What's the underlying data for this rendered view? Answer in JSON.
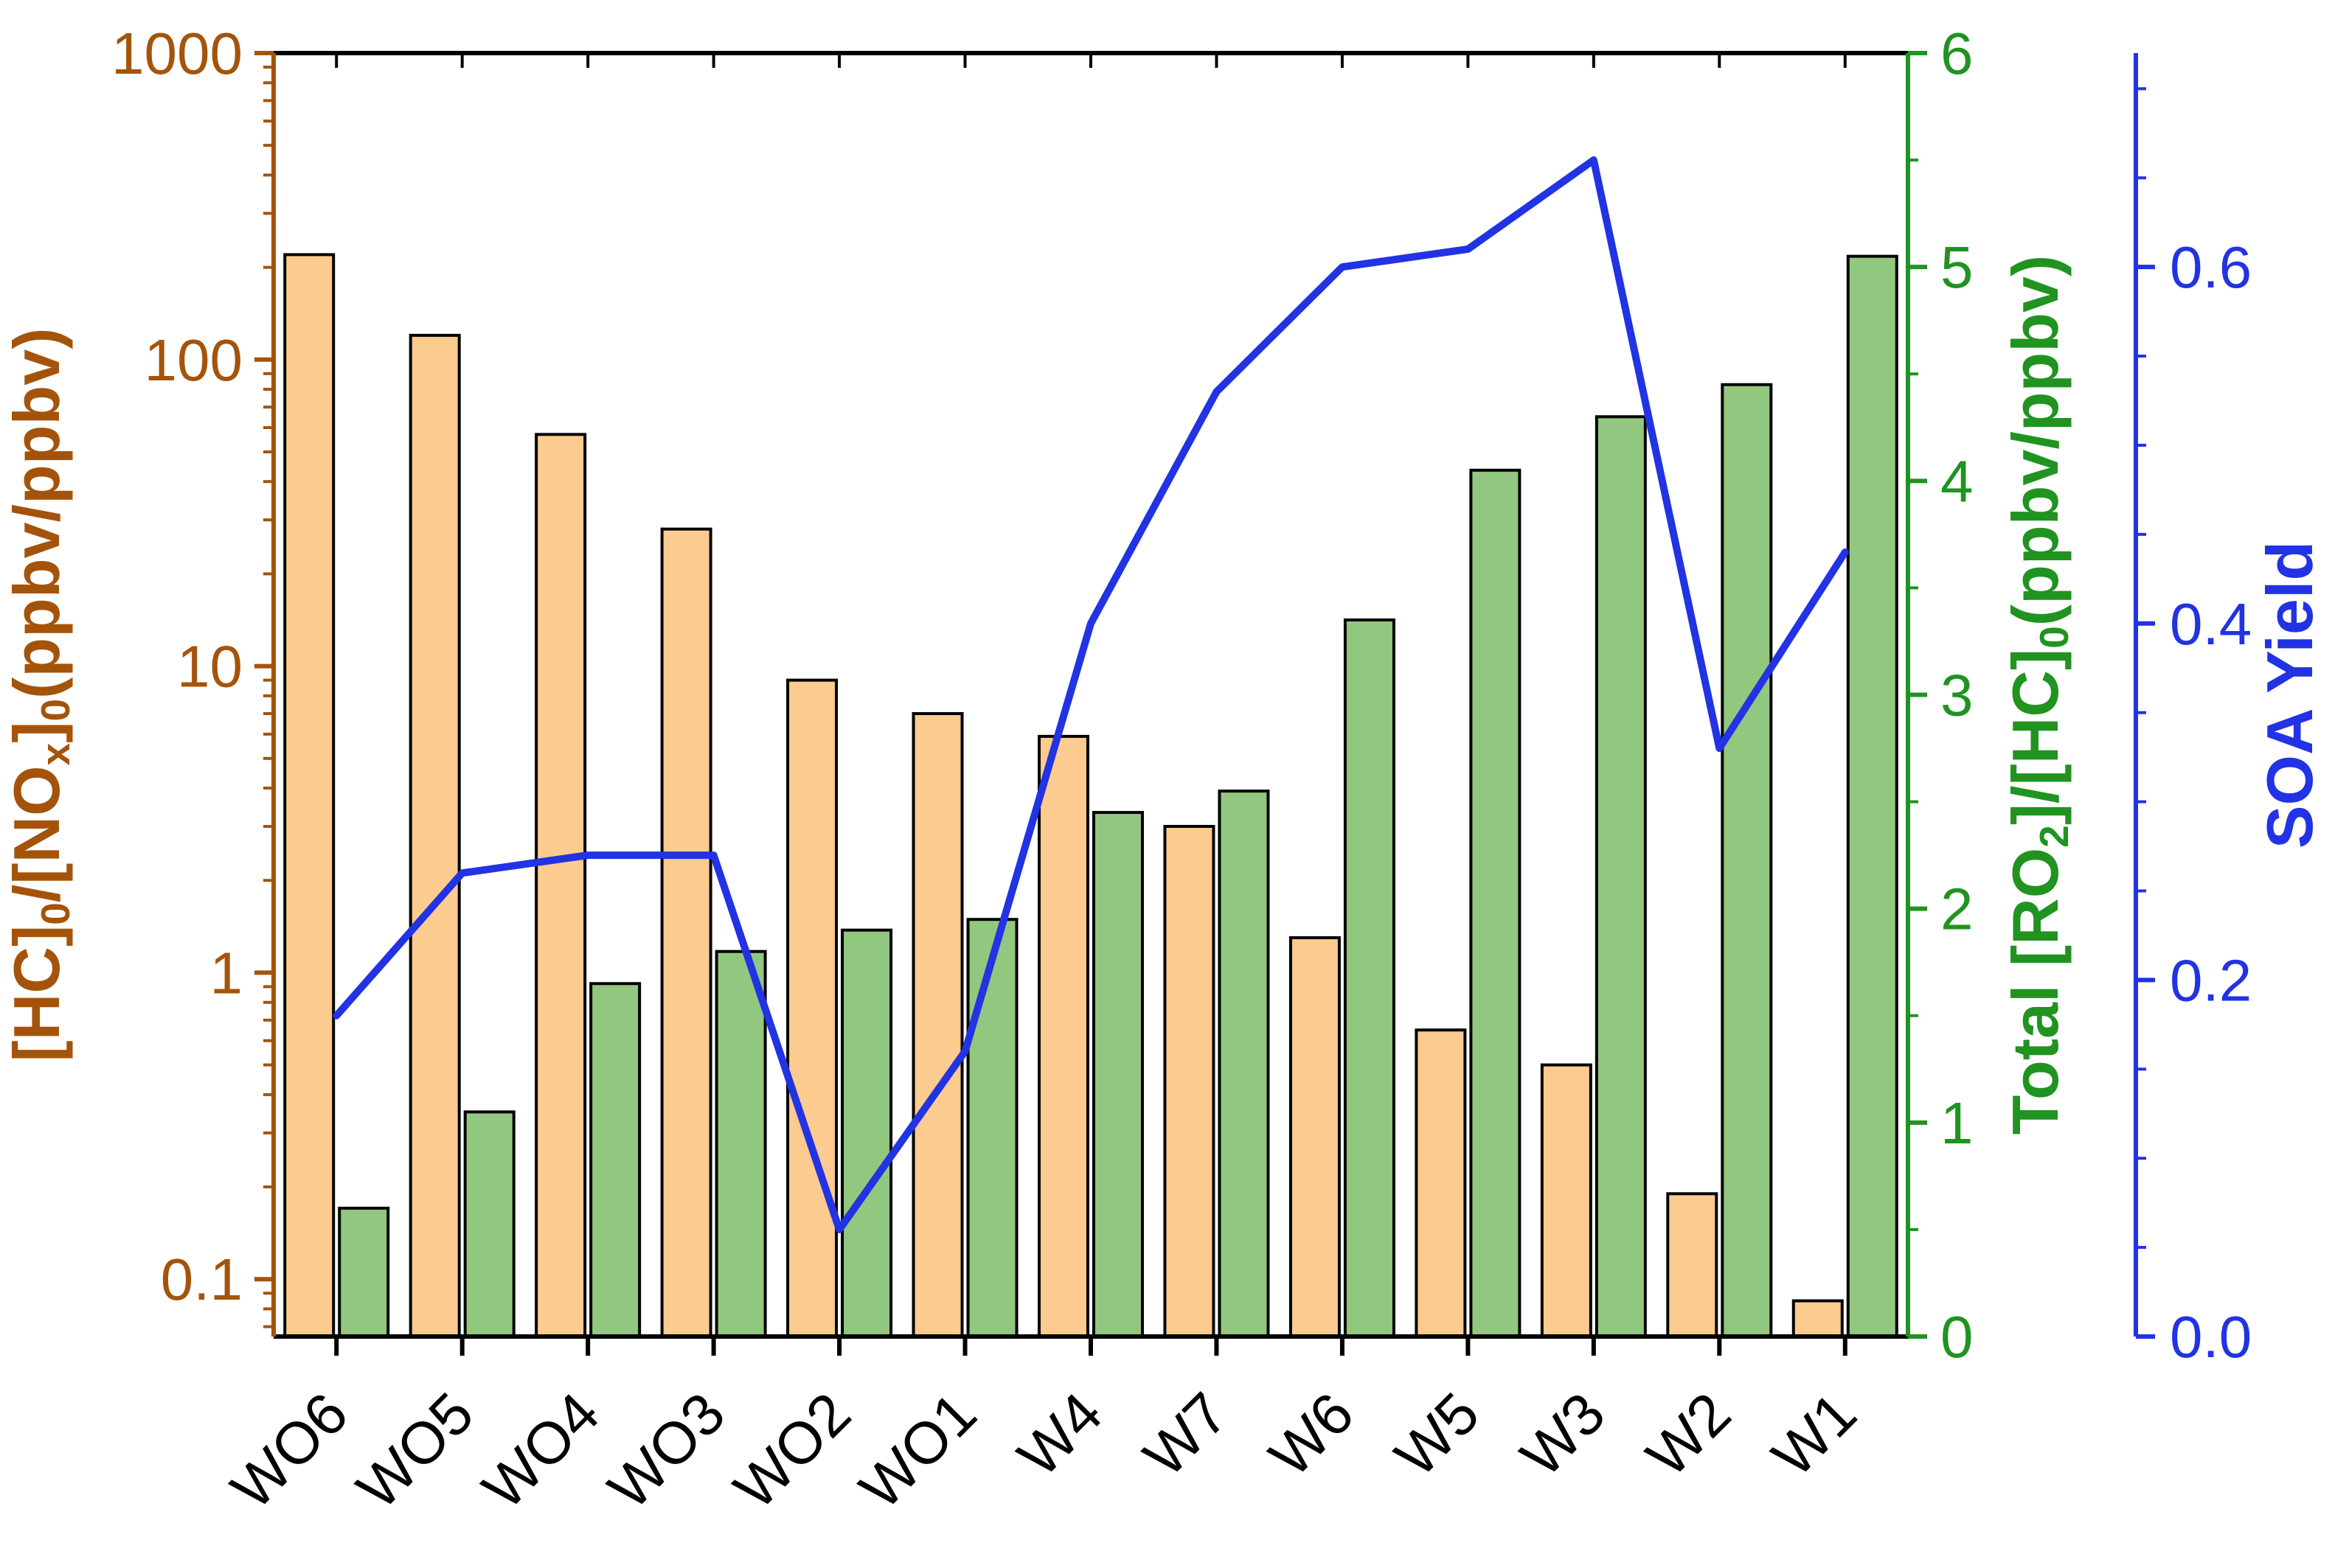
{
  "figure": {
    "background": "#ffffff"
  },
  "chart_data": {
    "type": "bar",
    "subtype": "grouped-bars-with-line-overlay",
    "grid": false,
    "legend": null,
    "categories": [
      "WO6",
      "WO5",
      "WO4",
      "WO3",
      "WO2",
      "WO1",
      "W4",
      "W7",
      "W6",
      "W5",
      "W3",
      "W2",
      "W1"
    ],
    "series": [
      {
        "name": "[HC]0/[NOx]0 (ppbv/ppbv)",
        "plot": "bar",
        "axis": "left",
        "fill": "#FBCB8F",
        "stroke": "#000000",
        "values": [
          220,
          120,
          57,
          28,
          9,
          7,
          5.9,
          3.0,
          1.3,
          0.65,
          0.5,
          0.19,
          0.085
        ]
      },
      {
        "name": "Total [RO2]/[HC]0 (ppbv/ppbv)",
        "plot": "bar",
        "axis": "green",
        "fill": "#92C77F",
        "stroke": "#000000",
        "values": [
          0.6,
          1.05,
          1.65,
          1.8,
          1.9,
          1.95,
          2.45,
          2.55,
          3.35,
          4.05,
          4.3,
          4.45,
          5.05
        ]
      },
      {
        "name": "SOA Yield",
        "plot": "line",
        "axis": "blue",
        "color": "#2133E3",
        "values": [
          0.18,
          0.26,
          0.27,
          0.27,
          0.06,
          0.16,
          0.4,
          0.53,
          0.6,
          0.61,
          0.66,
          0.33,
          0.44
        ]
      }
    ],
    "axes": {
      "left": {
        "scale": "log",
        "min": 0.065,
        "max": 1000,
        "color": "#A4540A",
        "tick_values": [
          1000,
          100,
          10,
          1,
          0.1
        ],
        "tick_labels": [
          "1000",
          "100",
          "10",
          "1",
          "0.1"
        ],
        "title_text": "[HC]0/[NOx]0(ppbv/ppbv)",
        "title_parts": [
          {
            "t": "[HC]"
          },
          {
            "s": "0"
          },
          {
            "t": "/[NO"
          },
          {
            "s": "x"
          },
          {
            "t": "]"
          },
          {
            "s": "0"
          },
          {
            "t": "(ppbv/ppbv)"
          }
        ]
      },
      "green": {
        "scale": "linear",
        "min": 0,
        "max": 6,
        "minor_step": 0.5,
        "color": "#209320",
        "tick_values": [
          0,
          1,
          2,
          3,
          4,
          5,
          6
        ],
        "tick_labels": [
          "0",
          "1",
          "2",
          "3",
          "4",
          "5",
          "6"
        ],
        "title_text": "Total [RO2]/[HC]0(ppbv/ppbv)",
        "title_parts": [
          {
            "t": "Total [RO"
          },
          {
            "s": "2"
          },
          {
            "t": "]/[HC]"
          },
          {
            "s": "0"
          },
          {
            "t": "(ppbv/ppbv)"
          }
        ]
      },
      "blue": {
        "scale": "linear",
        "min": 0,
        "max": 0.72,
        "minor_step": 0.05,
        "color": "#2133E3",
        "tick_values": [
          0.0,
          0.2,
          0.4,
          0.6
        ],
        "tick_labels": [
          "0.0",
          "0.2",
          "0.4",
          "0.6"
        ],
        "title_text": "SOA Yield",
        "title_parts": [
          {
            "t": "SOA Yield"
          }
        ]
      },
      "x": {
        "color": "#000000",
        "label_rotation_deg": -45
      }
    }
  }
}
